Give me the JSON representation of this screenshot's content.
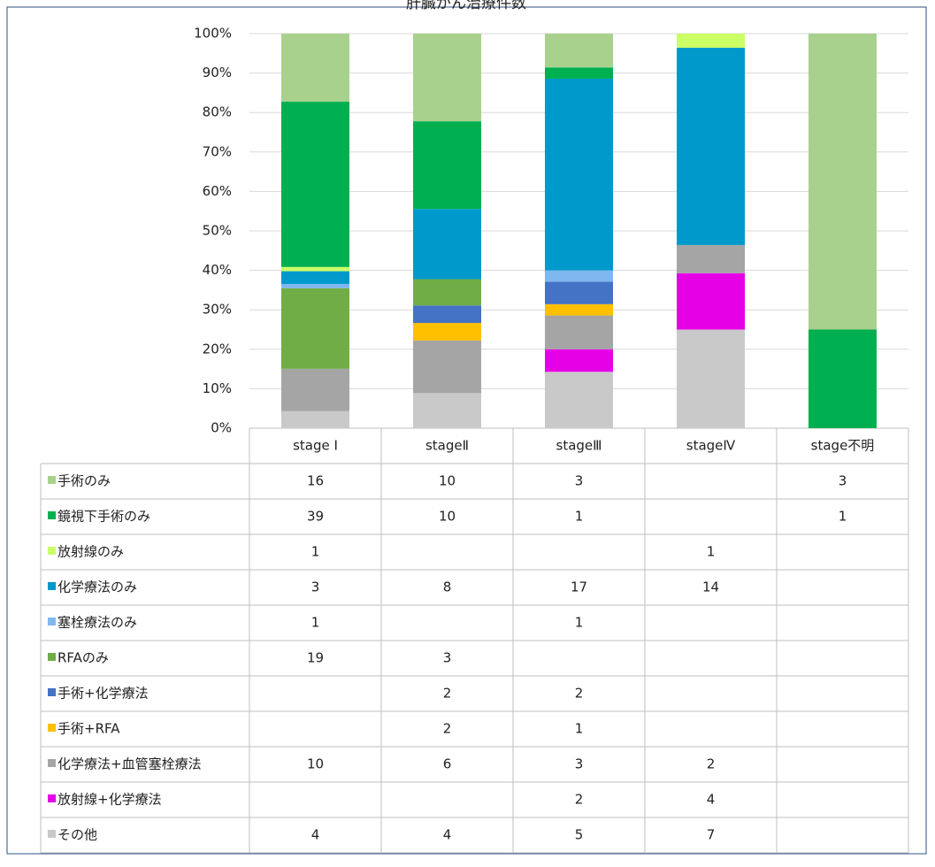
{
  "chart_data": {
    "type": "stacked_bar_100",
    "title": "肝臓がん治療件数",
    "categories": [
      "stage Ⅰ",
      "stageⅡ",
      "stageⅢ",
      "stageⅣ",
      "stage不明"
    ],
    "series": [
      {
        "name": "手術のみ",
        "color": "#a9d18e",
        "values": [
          16,
          10,
          3,
          null,
          3
        ]
      },
      {
        "name": "鏡視下手術のみ",
        "color": "#00b050",
        "values": [
          39,
          10,
          1,
          null,
          1
        ]
      },
      {
        "name": "放射線のみ",
        "color": "#ccff66",
        "values": [
          1,
          null,
          null,
          1,
          null
        ]
      },
      {
        "name": "化学療法のみ",
        "color": "#0099cc",
        "values": [
          3,
          8,
          17,
          14,
          null
        ]
      },
      {
        "name": "塞栓療法のみ",
        "color": "#7fb8f0",
        "values": [
          1,
          null,
          1,
          null,
          null
        ]
      },
      {
        "name": "RFAのみ",
        "color": "#70ad47",
        "values": [
          19,
          3,
          null,
          null,
          null
        ]
      },
      {
        "name": "手術+化学療法",
        "color": "#4472c4",
        "values": [
          null,
          2,
          2,
          null,
          null
        ]
      },
      {
        "name": "手術+RFA",
        "color": "#ffc000",
        "values": [
          null,
          2,
          1,
          null,
          null
        ]
      },
      {
        "name": "化学療法+血管塞栓療法",
        "color": "#a5a5a5",
        "values": [
          10,
          6,
          3,
          2,
          null
        ]
      },
      {
        "name": "放射線+化学療法",
        "color": "#e600e6",
        "values": [
          null,
          null,
          2,
          4,
          null
        ]
      },
      {
        "name": "その他",
        "color": "#c9c9c9",
        "values": [
          4,
          4,
          5,
          7,
          null
        ]
      }
    ],
    "ylim": [
      0,
      100
    ],
    "yticks": [
      {
        "value": 0,
        "label": "0%"
      },
      {
        "value": 10,
        "label": "10%"
      },
      {
        "value": 20,
        "label": "20%"
      },
      {
        "value": 30,
        "label": "30%"
      },
      {
        "value": 40,
        "label": "40%"
      },
      {
        "value": 50,
        "label": "50%"
      },
      {
        "value": 60,
        "label": "60%"
      },
      {
        "value": 70,
        "label": "70%"
      },
      {
        "value": 80,
        "label": "80%"
      },
      {
        "value": 90,
        "label": "90%"
      },
      {
        "value": 100,
        "label": "100%"
      }
    ],
    "grid": true
  }
}
